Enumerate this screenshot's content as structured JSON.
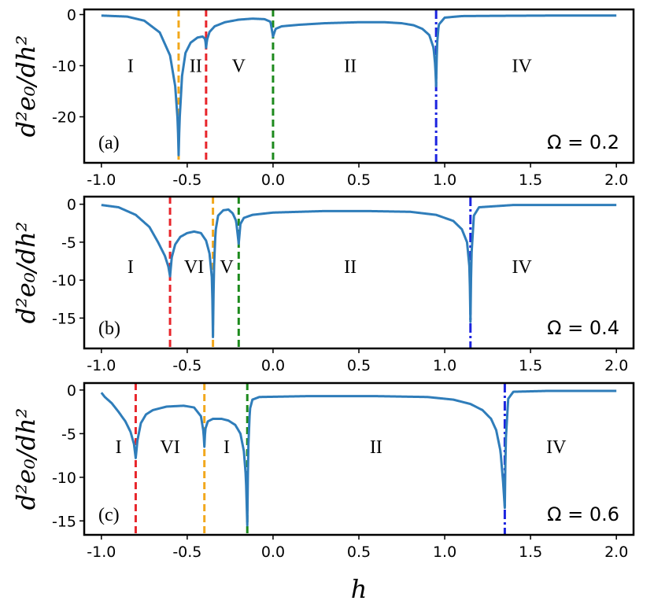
{
  "chart_data": [
    {
      "type": "line",
      "panel_label": "(a)",
      "annotation": "Ω = 0.2",
      "ylabel": "d²e₀/dh²",
      "xlim": [
        -1.1,
        2.1
      ],
      "ylim": [
        -29,
        1
      ],
      "yticks": [
        0,
        -10,
        -20
      ],
      "ytick_labels": [
        "0",
        "-10",
        "-20"
      ],
      "xticks": [
        -1.0,
        -0.5,
        0.0,
        0.5,
        1.0,
        1.5,
        2.0
      ],
      "xtick_labels": [
        "-1.0",
        "-0.5",
        "0.0",
        "0.5",
        "1.0",
        "1.5",
        "2.0"
      ],
      "base": [
        [
          -1.0,
          -0.2
        ],
        [
          -0.85,
          -0.4
        ],
        [
          -0.75,
          -1.2
        ],
        [
          -0.66,
          -3.5
        ],
        [
          -0.6,
          -8
        ],
        [
          -0.57,
          -14
        ],
        [
          -0.555,
          -21
        ],
        [
          -0.55,
          -27.5
        ],
        [
          -0.545,
          -21
        ],
        [
          -0.53,
          -12
        ],
        [
          -0.51,
          -7.5
        ],
        [
          -0.48,
          -5.5
        ],
        [
          -0.44,
          -4.5
        ],
        [
          -0.41,
          -4.3
        ],
        [
          -0.395,
          -4.8
        ],
        [
          -0.39,
          -6.5
        ],
        [
          -0.385,
          -5.0
        ],
        [
          -0.37,
          -3.4
        ],
        [
          -0.34,
          -2.3
        ],
        [
          -0.28,
          -1.5
        ],
        [
          -0.2,
          -1.0
        ],
        [
          -0.12,
          -0.8
        ],
        [
          -0.05,
          -0.9
        ],
        [
          -0.015,
          -1.4
        ],
        [
          0.0,
          -4.3
        ],
        [
          0.015,
          -2.8
        ],
        [
          0.05,
          -2.3
        ],
        [
          0.15,
          -2.0
        ],
        [
          0.3,
          -1.7
        ],
        [
          0.5,
          -1.5
        ],
        [
          0.65,
          -1.5
        ],
        [
          0.75,
          -1.7
        ],
        [
          0.82,
          -2.1
        ],
        [
          0.87,
          -2.8
        ],
        [
          0.91,
          -4.0
        ],
        [
          0.935,
          -6.5
        ],
        [
          0.945,
          -10
        ],
        [
          0.95,
          -14
        ],
        [
          0.955,
          -6
        ],
        [
          0.965,
          -2.0
        ],
        [
          1.0,
          -0.6
        ],
        [
          1.1,
          -0.3
        ],
        [
          1.3,
          -0.25
        ],
        [
          1.6,
          -0.2
        ],
        [
          2.0,
          -0.2
        ]
      ],
      "vlines": [
        {
          "x": -0.55,
          "color": "#f2a81d",
          "style": "dashed"
        },
        {
          "x": -0.39,
          "color": "#e8252b",
          "style": "dashed"
        },
        {
          "x": 0.0,
          "color": "#1d8a1d",
          "style": "dashed"
        },
        {
          "x": 0.95,
          "color": "#1c24e0",
          "style": "dashdot"
        }
      ],
      "regions": [
        {
          "label": "I",
          "x": -0.83,
          "y": -10
        },
        {
          "label": "II",
          "x": -0.45,
          "y": -10
        },
        {
          "label": "V",
          "x": -0.2,
          "y": -10
        },
        {
          "label": "II",
          "x": 0.45,
          "y": -10
        },
        {
          "label": "IV",
          "x": 1.45,
          "y": -10
        }
      ]
    },
    {
      "type": "line",
      "panel_label": "(b)",
      "annotation": "Ω = 0.4",
      "ylabel": "d²e₀/dh²",
      "xlim": [
        -1.1,
        2.1
      ],
      "ylim": [
        -19,
        1
      ],
      "yticks": [
        0,
        -5,
        -10,
        -15
      ],
      "ytick_labels": [
        "0",
        "-5",
        "-10",
        "-15"
      ],
      "xticks": [
        -1.0,
        -0.5,
        0.0,
        0.5,
        1.0,
        1.5,
        2.0
      ],
      "xtick_labels": [
        "-1.0",
        "-0.5",
        "0.0",
        "0.5",
        "1.0",
        "1.5",
        "2.0"
      ],
      "base": [
        [
          -1.0,
          -0.1
        ],
        [
          -0.9,
          -0.4
        ],
        [
          -0.8,
          -1.4
        ],
        [
          -0.72,
          -3.0
        ],
        [
          -0.67,
          -5.0
        ],
        [
          -0.63,
          -6.8
        ],
        [
          -0.61,
          -8.2
        ],
        [
          -0.6,
          -9.5
        ],
        [
          -0.59,
          -7.0
        ],
        [
          -0.57,
          -5.3
        ],
        [
          -0.54,
          -4.3
        ],
        [
          -0.5,
          -3.8
        ],
        [
          -0.46,
          -3.6
        ],
        [
          -0.42,
          -3.8
        ],
        [
          -0.39,
          -4.8
        ],
        [
          -0.37,
          -6.5
        ],
        [
          -0.355,
          -10
        ],
        [
          -0.35,
          -17.5
        ],
        [
          -0.345,
          -9
        ],
        [
          -0.335,
          -3.5
        ],
        [
          -0.32,
          -1.5
        ],
        [
          -0.29,
          -0.8
        ],
        [
          -0.26,
          -0.7
        ],
        [
          -0.235,
          -1.2
        ],
        [
          -0.215,
          -2.2
        ],
        [
          -0.2,
          -5.2
        ],
        [
          -0.19,
          -2.6
        ],
        [
          -0.17,
          -1.8
        ],
        [
          -0.12,
          -1.4
        ],
        [
          0.0,
          -1.1
        ],
        [
          0.3,
          -0.9
        ],
        [
          0.55,
          -0.9
        ],
        [
          0.8,
          -1.0
        ],
        [
          0.95,
          -1.4
        ],
        [
          1.05,
          -2.2
        ],
        [
          1.1,
          -3.3
        ],
        [
          1.13,
          -5.0
        ],
        [
          1.145,
          -8.5
        ],
        [
          1.15,
          -15.5
        ],
        [
          1.155,
          -7
        ],
        [
          1.17,
          -1.5
        ],
        [
          1.2,
          -0.4
        ],
        [
          1.4,
          -0.1
        ],
        [
          2.0,
          -0.1
        ]
      ],
      "vlines": [
        {
          "x": -0.6,
          "color": "#e8252b",
          "style": "dashed"
        },
        {
          "x": -0.35,
          "color": "#f2a81d",
          "style": "dashed"
        },
        {
          "x": -0.2,
          "color": "#1d8a1d",
          "style": "dashed"
        },
        {
          "x": 1.15,
          "color": "#1c24e0",
          "style": "dashdot"
        }
      ],
      "regions": [
        {
          "label": "I",
          "x": -0.83,
          "y": -8.2
        },
        {
          "label": "VI",
          "x": -0.46,
          "y": -8.2
        },
        {
          "label": "V",
          "x": -0.27,
          "y": -8.2
        },
        {
          "label": "II",
          "x": 0.45,
          "y": -8.2
        },
        {
          "label": "IV",
          "x": 1.45,
          "y": -8.2
        }
      ]
    },
    {
      "type": "line",
      "panel_label": "(c)",
      "annotation": "Ω = 0.6",
      "ylabel": "d²e₀/dh²",
      "xlabel": "h",
      "xlim": [
        -1.1,
        2.1
      ],
      "ylim": [
        -16.6,
        0.8
      ],
      "yticks": [
        0,
        -5,
        -10,
        -15
      ],
      "ytick_labels": [
        "0",
        "-5",
        "-10",
        "-15"
      ],
      "xticks": [
        -1.0,
        -0.5,
        0.0,
        0.5,
        1.0,
        1.5,
        2.0
      ],
      "xtick_labels": [
        "-1.0",
        "-0.5",
        "0.0",
        "0.5",
        "1.0",
        "1.5",
        "2.0"
      ],
      "base": [
        [
          -1.0,
          -0.3
        ],
        [
          -0.98,
          -0.8
        ],
        [
          -0.94,
          -1.5
        ],
        [
          -0.9,
          -2.5
        ],
        [
          -0.86,
          -3.6
        ],
        [
          -0.83,
          -4.8
        ],
        [
          -0.81,
          -6.2
        ],
        [
          -0.8,
          -7.8
        ],
        [
          -0.79,
          -5.8
        ],
        [
          -0.77,
          -3.8
        ],
        [
          -0.74,
          -2.8
        ],
        [
          -0.7,
          -2.3
        ],
        [
          -0.62,
          -1.9
        ],
        [
          -0.52,
          -1.8
        ],
        [
          -0.46,
          -2.0
        ],
        [
          -0.42,
          -3.0
        ],
        [
          -0.405,
          -4.8
        ],
        [
          -0.4,
          -6.5
        ],
        [
          -0.395,
          -4.5
        ],
        [
          -0.38,
          -3.6
        ],
        [
          -0.35,
          -3.3
        ],
        [
          -0.3,
          -3.3
        ],
        [
          -0.26,
          -3.5
        ],
        [
          -0.22,
          -4.0
        ],
        [
          -0.19,
          -5.0
        ],
        [
          -0.17,
          -7.0
        ],
        [
          -0.158,
          -10
        ],
        [
          -0.15,
          -15.5
        ],
        [
          -0.145,
          -7
        ],
        [
          -0.135,
          -2.2
        ],
        [
          -0.12,
          -1.1
        ],
        [
          -0.08,
          -0.8
        ],
        [
          0.2,
          -0.7
        ],
        [
          0.6,
          -0.7
        ],
        [
          0.9,
          -0.8
        ],
        [
          1.05,
          -1.1
        ],
        [
          1.15,
          -1.6
        ],
        [
          1.22,
          -2.3
        ],
        [
          1.27,
          -3.3
        ],
        [
          1.3,
          -4.6
        ],
        [
          1.325,
          -7.0
        ],
        [
          1.34,
          -10.5
        ],
        [
          1.35,
          -13.5
        ],
        [
          1.355,
          -6
        ],
        [
          1.37,
          -1.0
        ],
        [
          1.4,
          -0.2
        ],
        [
          1.6,
          -0.1
        ],
        [
          2.0,
          -0.1
        ]
      ],
      "vlines": [
        {
          "x": -0.8,
          "color": "#e8252b",
          "style": "dashed"
        },
        {
          "x": -0.4,
          "color": "#f2a81d",
          "style": "dashed"
        },
        {
          "x": -0.15,
          "color": "#1d8a1d",
          "style": "dashed"
        },
        {
          "x": 1.35,
          "color": "#1c24e0",
          "style": "dashdot"
        }
      ],
      "regions": [
        {
          "label": "I",
          "x": -0.9,
          "y": -6.5
        },
        {
          "label": "VI",
          "x": -0.6,
          "y": -6.5
        },
        {
          "label": "I",
          "x": -0.27,
          "y": -6.5
        },
        {
          "label": "II",
          "x": 0.6,
          "y": -6.5
        },
        {
          "label": "IV",
          "x": 1.65,
          "y": -6.5
        }
      ]
    }
  ]
}
